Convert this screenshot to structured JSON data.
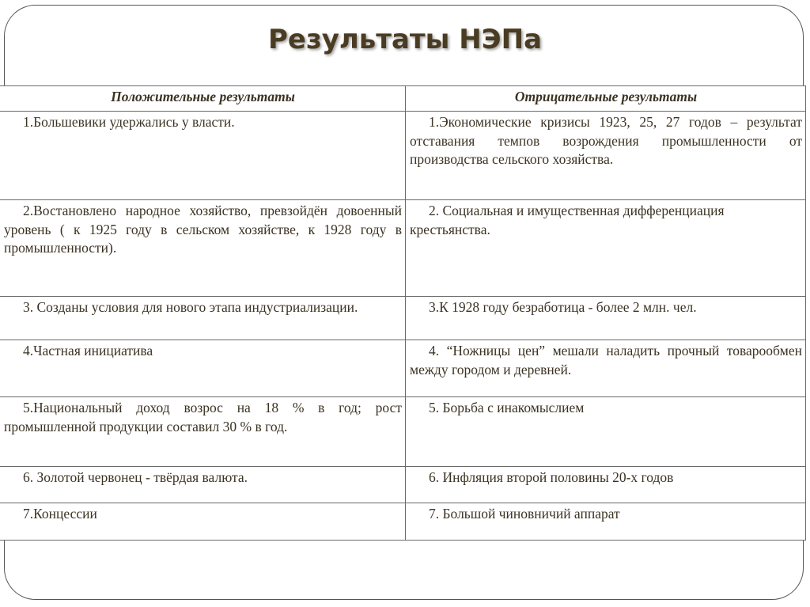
{
  "title": "Результаты НЭПа",
  "table": {
    "headers": [
      "Положительные результаты",
      "Отрицательные результаты"
    ],
    "rows": [
      [
        "1.Большевики удержались у власти.",
        "1.Экономические кризисы 1923, 25, 27 годов – результат отставания темпов возрождения промышленности от производства сельского хозяйства."
      ],
      [
        "2.Востановлено народное хозяйство, превзойдён довоенный уровень ( к 1925 году в сельском хозяйстве, к 1928 году в промышленности).",
        "2. Социальная и имущественная дифференциация крестьянства."
      ],
      [
        "3. Созданы условия для нового этапа индустриализации.",
        "3.К 1928 году безработица - более 2 млн. чел."
      ],
      [
        "4.Частная инициатива",
        "4. “Ножницы цен” мешали наладить прочный товарообмен между городом и деревней."
      ],
      [
        "5.Национальный доход возрос на 18 % в год; рост промышленной продукции составил 30 % в год.",
        "5. Борьба с инакомыслием"
      ],
      [
        "6. Золотой червонец - твёрдая валюта.",
        "6. Инфляция второй половины 20-х годов"
      ],
      [
        "7.Концессии",
        "7. Большой чиновничий аппарат"
      ]
    ]
  }
}
